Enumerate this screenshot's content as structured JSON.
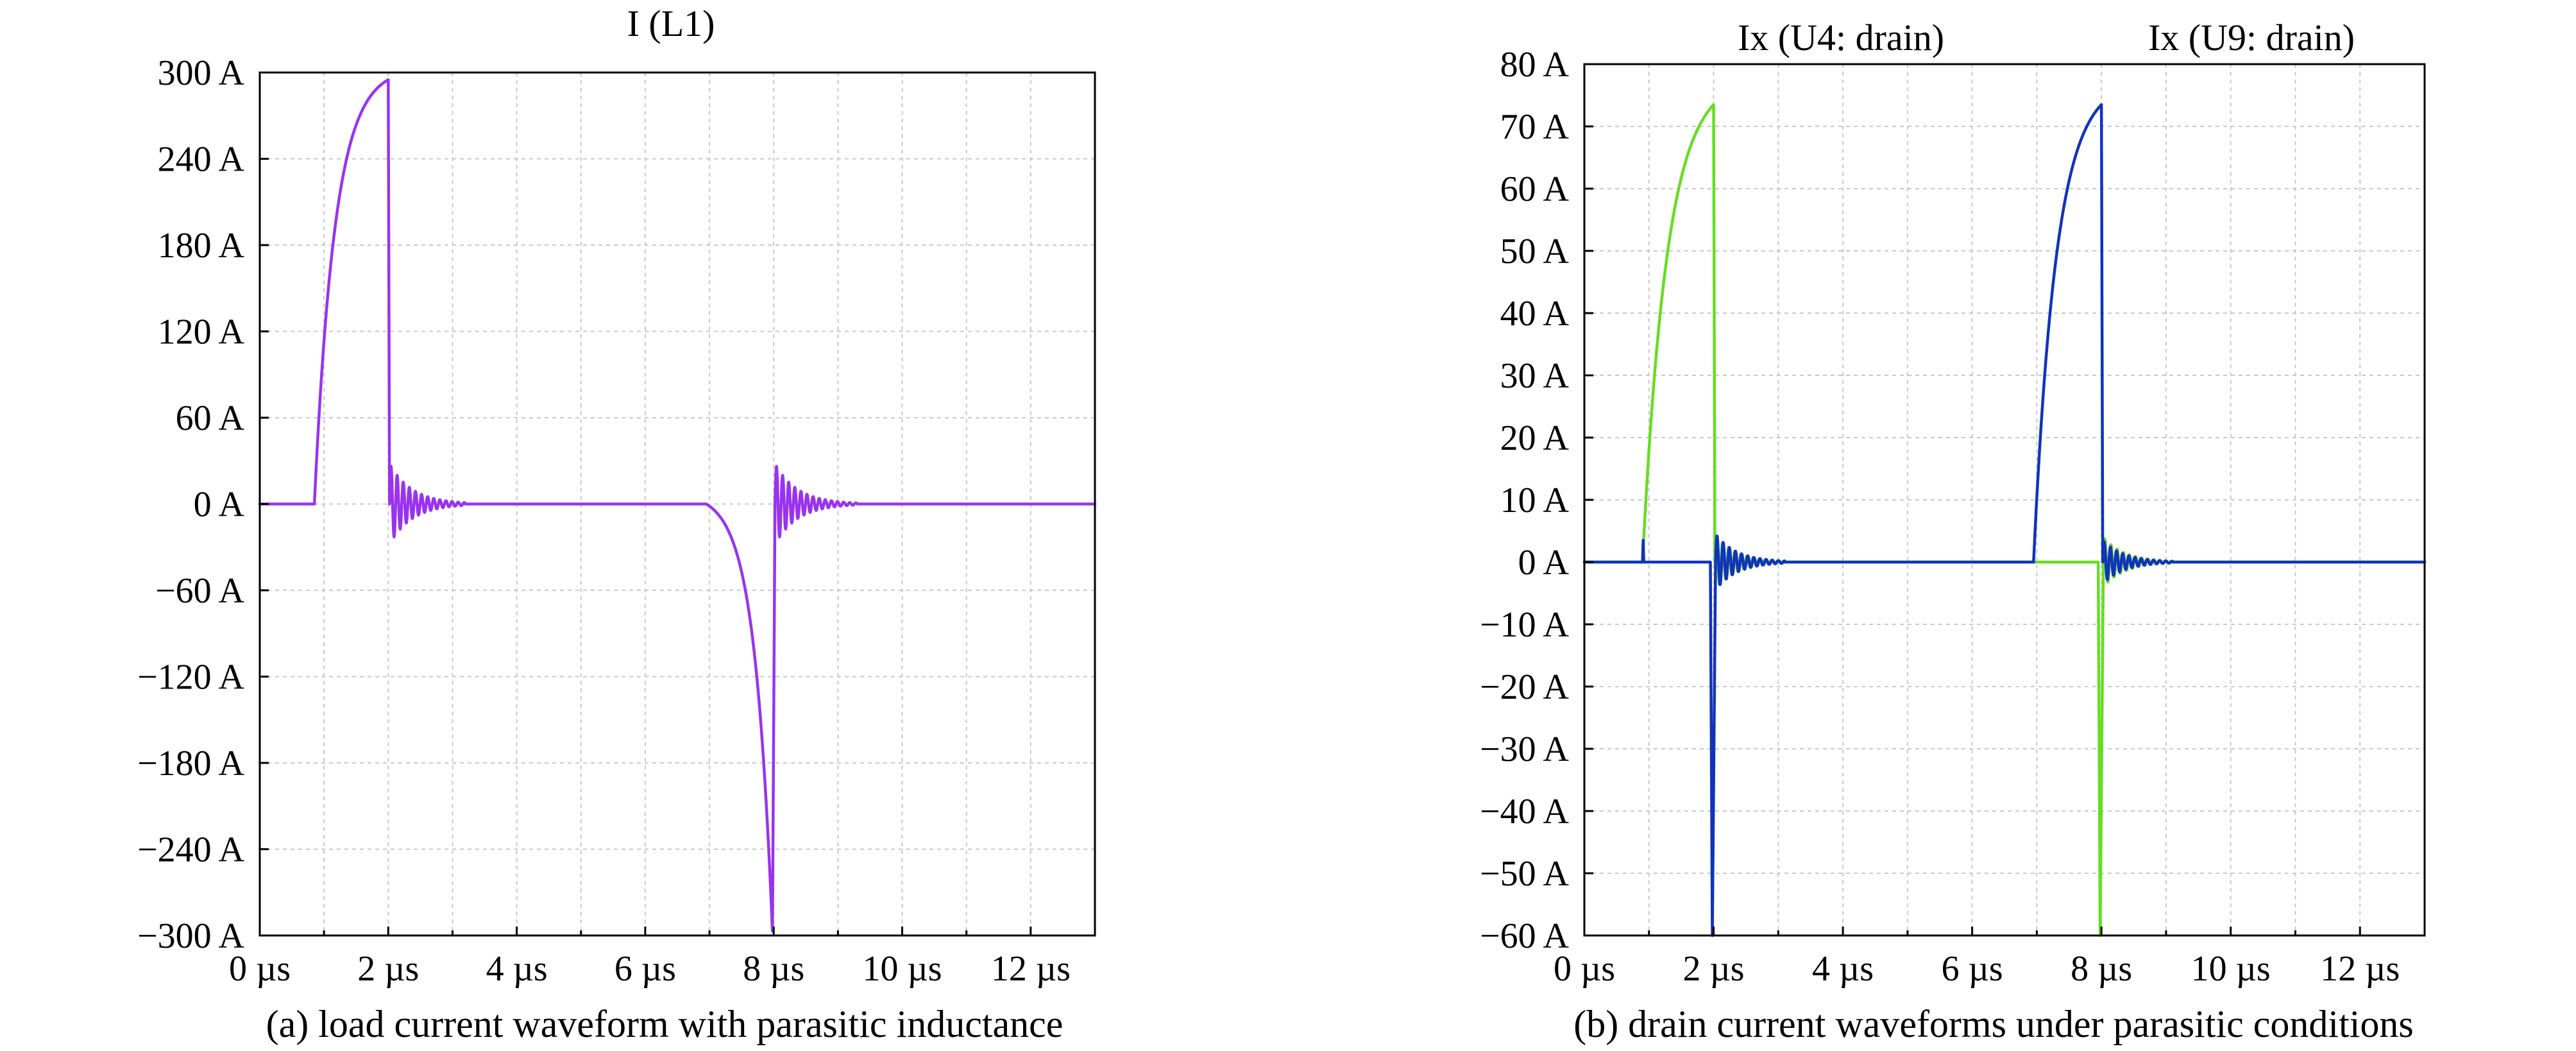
{
  "chart_data": [
    {
      "id": "a",
      "type": "line",
      "title": "I (L1)",
      "caption": "(a) load current waveform with parasitic inductance",
      "xlabel": "",
      "ylabel": "",
      "xlim": [
        0,
        13
      ],
      "ylim": [
        -300,
        300
      ],
      "x_ticks": [
        0,
        2,
        4,
        6,
        8,
        10,
        12
      ],
      "x_tick_labels": [
        "0 µs",
        "2 µs",
        "4 µs",
        "6 µs",
        "8 µs",
        "10 µs",
        "12 µs"
      ],
      "x_grid": [
        0,
        1,
        2,
        3,
        4,
        5,
        6,
        7,
        8,
        9,
        10,
        11,
        12,
        13
      ],
      "y_ticks": [
        300,
        240,
        180,
        120,
        60,
        0,
        -60,
        -120,
        -180,
        -240,
        -300
      ],
      "y_tick_labels": [
        "300 A",
        "240 A",
        "180 A",
        "120 A",
        "60 A",
        "0 A",
        "−60 A",
        "−120 A",
        "−180 A",
        "−240 A",
        "−300 A"
      ],
      "grid": true,
      "series": [
        {
          "name": "I (L1)",
          "color": "#9933ee",
          "segments": [
            {
              "kind": "flat",
              "t0": 0,
              "t1": 0.85,
              "v": 0
            },
            {
              "kind": "rise",
              "t0": 0.85,
              "t1": 2.0,
              "v0": 0,
              "v1": 295,
              "tau": 0.32
            },
            {
              "kind": "edge",
              "t0": 2.0,
              "t1": 2.02,
              "v0": 295,
              "v1": 0
            },
            {
              "kind": "ring",
              "t0": 2.02,
              "t1": 3.2,
              "amp": 28,
              "period": 0.095,
              "tau": 0.35
            },
            {
              "kind": "flat",
              "t0": 3.2,
              "t1": 6.95,
              "v": 0
            },
            {
              "kind": "rise",
              "t0": 6.95,
              "t1": 7.98,
              "v0": 0,
              "v1": -297,
              "tau": 0.28,
              "shape": "concave"
            },
            {
              "kind": "edge",
              "t0": 7.98,
              "t1": 8.02,
              "v0": -297,
              "v1": 0
            },
            {
              "kind": "ring",
              "t0": 8.02,
              "t1": 9.3,
              "amp": 28,
              "period": 0.095,
              "tau": 0.35
            },
            {
              "kind": "flat",
              "t0": 9.3,
              "t1": 13,
              "v": 0
            }
          ]
        }
      ]
    },
    {
      "id": "b",
      "type": "line",
      "title": "",
      "caption": "(b) drain current waveforms under parasitic conditions",
      "annotations": [
        "Ix (U4: drain)",
        "Ix (U9: drain)"
      ],
      "xlabel": "",
      "ylabel": "",
      "xlim": [
        0,
        13
      ],
      "ylim": [
        -60,
        80
      ],
      "x_ticks": [
        0,
        2,
        4,
        6,
        8,
        10,
        12
      ],
      "x_tick_labels": [
        "0 µs",
        "2 µs",
        "4 µs",
        "6 µs",
        "8 µs",
        "10 µs",
        "12 µs"
      ],
      "x_grid": [
        0,
        1,
        2,
        3,
        4,
        5,
        6,
        7,
        8,
        9,
        10,
        11,
        12,
        13
      ],
      "y_ticks": [
        80,
        70,
        60,
        50,
        40,
        30,
        20,
        10,
        0,
        -10,
        -20,
        -30,
        -40,
        -50,
        -60
      ],
      "y_tick_labels": [
        "80 A",
        "70 A",
        "60 A",
        "50 A",
        "40 A",
        "30 A",
        "20 A",
        "10 A",
        "0 A",
        "−10 A",
        "−20 A",
        "−30 A",
        "−40 A",
        "−50 A",
        "−60 A"
      ],
      "grid": true,
      "series": [
        {
          "name": "Ix (U4: drain)",
          "color": "#66dd22",
          "segments": [
            {
              "kind": "flat",
              "t0": 0,
              "t1": 0.9,
              "v": 0
            },
            {
              "kind": "rise",
              "t0": 0.9,
              "t1": 2.0,
              "v0": 0,
              "v1": 73.5,
              "tau": 0.38
            },
            {
              "kind": "edge",
              "t0": 2.0,
              "t1": 2.02,
              "v0": 73.5,
              "v1": 0
            },
            {
              "kind": "ring",
              "t0": 2.02,
              "t1": 3.1,
              "amp": 4.5,
              "period": 0.095,
              "tau": 0.33
            },
            {
              "kind": "flat",
              "t0": 3.1,
              "t1": 7.95,
              "v": 0
            },
            {
              "kind": "edge",
              "t0": 7.95,
              "t1": 7.98,
              "v0": 0,
              "v1": -60
            },
            {
              "kind": "edge",
              "t0": 7.98,
              "t1": 8.03,
              "v0": -60,
              "v1": 0
            },
            {
              "kind": "ring",
              "t0": 8.03,
              "t1": 9.1,
              "amp": 4.0,
              "period": 0.095,
              "tau": 0.33
            },
            {
              "kind": "flat",
              "t0": 9.1,
              "t1": 13,
              "v": 0
            }
          ]
        },
        {
          "name": "Ix (U9: drain)",
          "color": "#1133bb",
          "segments": [
            {
              "kind": "flat",
              "t0": 0,
              "t1": 0.9,
              "v": 0
            },
            {
              "kind": "edge",
              "t0": 0.9,
              "t1": 0.91,
              "v0": 0,
              "v1": 3.5
            },
            {
              "kind": "edge",
              "t0": 0.91,
              "t1": 0.92,
              "v0": 3.5,
              "v1": 0
            },
            {
              "kind": "flat",
              "t0": 0.92,
              "t1": 1.95,
              "v": 0
            },
            {
              "kind": "edge",
              "t0": 1.95,
              "t1": 1.98,
              "v0": 0,
              "v1": -60
            },
            {
              "kind": "edge",
              "t0": 1.98,
              "t1": 2.03,
              "v0": -60,
              "v1": 0
            },
            {
              "kind": "ring",
              "t0": 2.03,
              "t1": 3.1,
              "amp": 4.5,
              "period": 0.095,
              "tau": 0.33
            },
            {
              "kind": "flat",
              "t0": 3.1,
              "t1": 6.95,
              "v": 0
            },
            {
              "kind": "rise",
              "t0": 6.95,
              "t1": 8.0,
              "v0": 0,
              "v1": 73.5,
              "tau": 0.35
            },
            {
              "kind": "edge",
              "t0": 8.0,
              "t1": 8.02,
              "v0": 73.5,
              "v1": 0
            },
            {
              "kind": "ring",
              "t0": 8.02,
              "t1": 9.1,
              "amp": 3.5,
              "period": 0.095,
              "tau": 0.33
            },
            {
              "kind": "flat",
              "t0": 9.1,
              "t1": 13,
              "v": 0
            }
          ]
        }
      ]
    }
  ]
}
